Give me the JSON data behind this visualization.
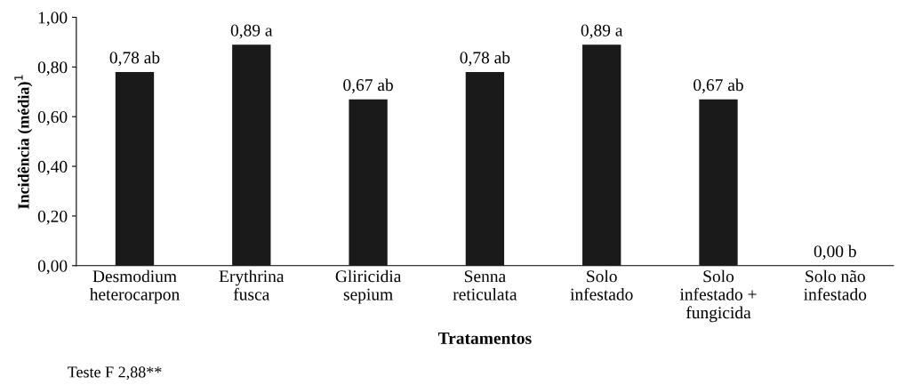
{
  "chart_data": {
    "type": "bar",
    "xlabel": "Tratamentos",
    "ylabel": "Incidência (média)$^{1}$",
    "categories": [
      "Desmodium\nheterocarpon",
      "Erythrina\nfusca",
      "Gliricidia\nsepium",
      "Senna\nreticulata",
      "Solo\ninfestado",
      "Solo\ninfestado +\nfungicida",
      "Solo não\ninfestado"
    ],
    "values": [
      0.78,
      0.89,
      0.67,
      0.78,
      0.89,
      0.67,
      0.0
    ],
    "value_labels": [
      "0,78 ab",
      "0,89 a",
      "0,67 ab",
      "0,78 ab",
      "0,89 a",
      "0,67 ab",
      "0,00 b"
    ],
    "color": "#1a1a1a",
    "ylim": [
      0,
      1
    ],
    "yticks": [
      {
        "value": 0,
        "label": "0,00"
      },
      {
        "value": 0.2,
        "label": "0,20"
      },
      {
        "value": 0.4,
        "label": "0,40"
      },
      {
        "value": 0.6,
        "label": "0,60"
      },
      {
        "value": 0.8,
        "label": "0,80"
      },
      {
        "value": 1,
        "label": "1,00"
      }
    ],
    "grid": false,
    "annotations": [
      "Teste F 2,88**"
    ]
  }
}
